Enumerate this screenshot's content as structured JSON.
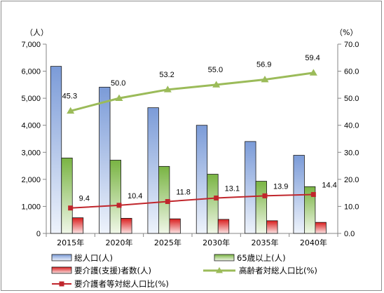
{
  "chart_data": {
    "type": "bar",
    "categories": [
      "2015年",
      "2020年",
      "2025年",
      "2030年",
      "2035年",
      "2040年"
    ],
    "left_axis": {
      "unit": "（人）",
      "min": 0,
      "max": 7000,
      "step": 1000,
      "ticks": [
        "0",
        "1,000",
        "2,000",
        "3,000",
        "4,000",
        "5,000",
        "6,000",
        "7,000"
      ]
    },
    "right_axis": {
      "unit": "（%）",
      "min": 0,
      "max": 70,
      "step": 10,
      "ticks": [
        "0.0",
        "10.0",
        "20.0",
        "30.0",
        "40.0",
        "50.0",
        "60.0",
        "70.0"
      ]
    },
    "bar_series": [
      {
        "name": "総人口(人)",
        "color": "#7f9fdc",
        "values": [
          6180,
          5410,
          4650,
          4000,
          3400,
          2890
        ]
      },
      {
        "name": "65歳以上(人)",
        "color": "#8dc45a",
        "values": [
          2790,
          2710,
          2480,
          2190,
          1930,
          1730
        ]
      },
      {
        "name": "要介護(支援)者数(人)",
        "color": "#e8282a",
        "values": [
          580,
          560,
          540,
          520,
          470,
          410
        ]
      }
    ],
    "line_series": [
      {
        "name": "高齢者対総人口比(%)",
        "color": "#9bbb59",
        "marker": "triangle",
        "values": [
          45.3,
          50.0,
          53.2,
          55.0,
          56.9,
          59.4
        ],
        "labels": [
          "45.3",
          "50.0",
          "53.2",
          "55.0",
          "56.9",
          "59.4"
        ]
      },
      {
        "name": "要介護者等対総人口比(%)",
        "color": "#c0262c",
        "marker": "square",
        "values": [
          9.4,
          10.4,
          11.8,
          13.1,
          13.9,
          14.4
        ],
        "labels": [
          "9.4",
          "10.4",
          "11.8",
          "13.1",
          "13.9",
          "14.4"
        ]
      }
    ],
    "grid": false,
    "legend_position": "bottom"
  }
}
